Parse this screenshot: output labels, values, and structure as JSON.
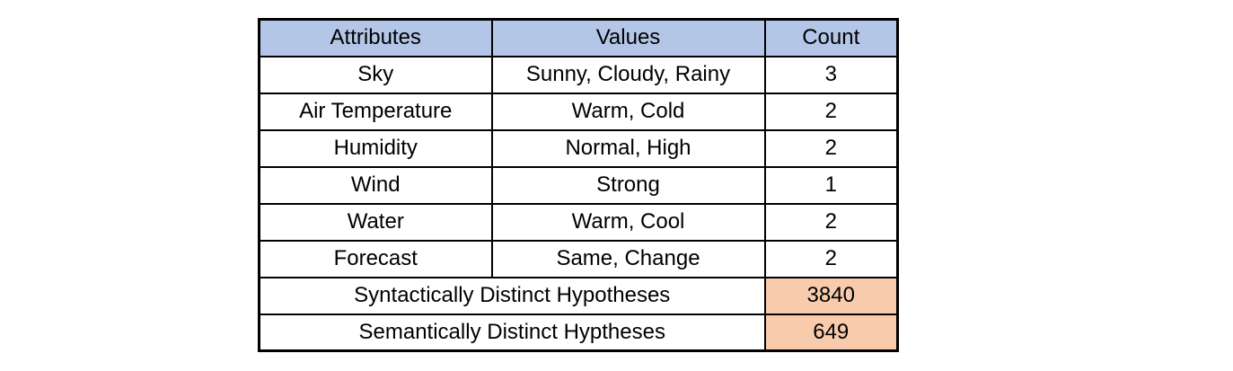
{
  "table": {
    "headers": [
      "Attributes",
      "Values",
      "Count"
    ],
    "rows": [
      {
        "attribute": "Sky",
        "values": "Sunny, Cloudy, Rainy",
        "count": "3"
      },
      {
        "attribute": "Air Temperature",
        "values": "Warm, Cold",
        "count": "2"
      },
      {
        "attribute": "Humidity",
        "values": "Normal, High",
        "count": "2"
      },
      {
        "attribute": "Wind",
        "values": "Strong",
        "count": "1"
      },
      {
        "attribute": "Water",
        "values": "Warm, Cool",
        "count": "2"
      },
      {
        "attribute": "Forecast",
        "values": "Same, Change",
        "count": "2"
      }
    ],
    "summary_rows": [
      {
        "label": "Syntactically Distinct Hypotheses",
        "count": "3840"
      },
      {
        "label": "Semantically Distinct Hyptheses",
        "count": "649"
      }
    ],
    "colors": {
      "header_bg": "#b4c6e7",
      "summary_count_bg": "#f8cbad",
      "border": "#000000",
      "page_bg": "#ffffff"
    }
  }
}
